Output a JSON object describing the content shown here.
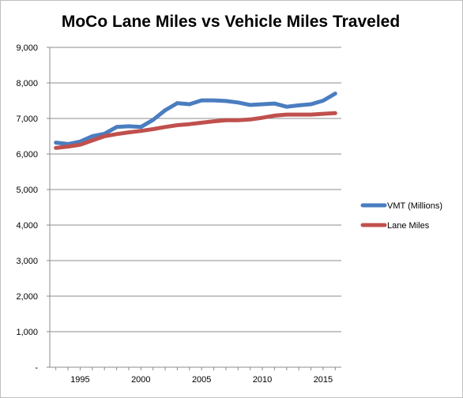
{
  "chart_data": {
    "type": "line",
    "title": "MoCo Lane Miles vs Vehicle Miles Traveled",
    "xlabel": "",
    "ylabel": "",
    "x": [
      1993,
      1994,
      1995,
      1996,
      1997,
      1998,
      1999,
      2000,
      2001,
      2002,
      2003,
      2004,
      2005,
      2006,
      2007,
      2008,
      2009,
      2010,
      2011,
      2012,
      2013,
      2014,
      2015,
      2016
    ],
    "xlim": [
      1992.5,
      2016.5
    ],
    "ylim": [
      0,
      9000
    ],
    "x_ticks": [
      1995,
      2000,
      2005,
      2010,
      2015
    ],
    "y_ticks": [
      0,
      1000,
      2000,
      3000,
      4000,
      5000,
      6000,
      7000,
      8000,
      9000
    ],
    "y_tick_labels": [
      "-",
      "1,000",
      "2,000",
      "3,000",
      "4,000",
      "5,000",
      "6,000",
      "7,000",
      "8,000",
      "9,000"
    ],
    "grid": "horizontal",
    "legend_position": "right",
    "series": [
      {
        "name": "VMT (Millions)",
        "color": "#4a7dc0",
        "values": [
          6320,
          6280,
          6350,
          6500,
          6570,
          6760,
          6780,
          6760,
          6960,
          7230,
          7430,
          7400,
          7510,
          7510,
          7490,
          7450,
          7380,
          7400,
          7420,
          7330,
          7370,
          7400,
          7500,
          7700
        ]
      },
      {
        "name": "Lane Miles",
        "color": "#c0504d",
        "values": [
          6170,
          6210,
          6260,
          6380,
          6500,
          6560,
          6610,
          6650,
          6700,
          6760,
          6810,
          6840,
          6880,
          6920,
          6950,
          6950,
          6970,
          7020,
          7080,
          7110,
          7110,
          7110,
          7130,
          7150
        ]
      }
    ]
  }
}
